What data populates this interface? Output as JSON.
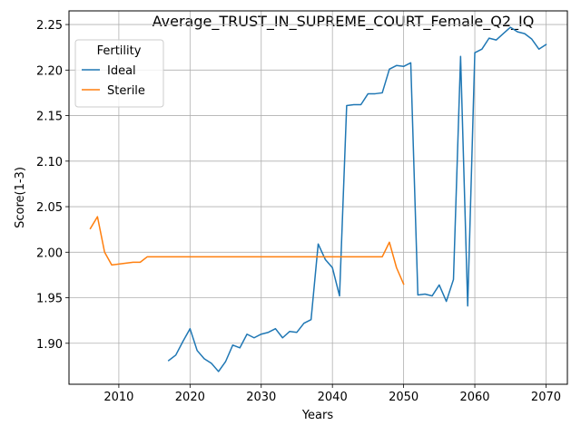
{
  "chart_data": {
    "type": "line",
    "title": "Average_TRUST_IN_SUPREME_COURT_Female_Q2_IQ",
    "xlabel": "Years",
    "ylabel": "Score(1-3)",
    "xlim": [
      2003,
      2073
    ],
    "ylim": [
      1.855,
      2.265
    ],
    "xticks": [
      2010,
      2020,
      2030,
      2040,
      2050,
      2060,
      2070
    ],
    "yticks": [
      1.9,
      1.95,
      2.0,
      2.05,
      2.1,
      2.15,
      2.2,
      2.25
    ],
    "ytick_labels": [
      "1.90",
      "1.95",
      "2.00",
      "2.05",
      "2.10",
      "2.15",
      "2.20",
      "2.25"
    ],
    "grid": true,
    "legend": {
      "title": "Fertility",
      "placement": "top-left"
    },
    "series": [
      {
        "name": "Ideal",
        "color": "#1f77b4",
        "x": [
          2017,
          2018,
          2019,
          2020,
          2021,
          2022,
          2023,
          2024,
          2025,
          2026,
          2027,
          2028,
          2029,
          2030,
          2031,
          2032,
          2033,
          2034,
          2035,
          2036,
          2037,
          2038,
          2039,
          2040,
          2041,
          2042,
          2043,
          2044,
          2045,
          2046,
          2047,
          2048,
          2049,
          2050,
          2051,
          2052,
          2053,
          2054,
          2055,
          2056,
          2057,
          2058,
          2059,
          2060,
          2061,
          2062,
          2063,
          2064,
          2065,
          2066,
          2067,
          2068,
          2069,
          2070
        ],
        "y": [
          1.881,
          1.887,
          1.902,
          1.916,
          1.892,
          1.883,
          1.878,
          1.869,
          1.88,
          1.898,
          1.895,
          1.91,
          1.906,
          1.91,
          1.912,
          1.916,
          1.906,
          1.913,
          1.912,
          1.922,
          1.926,
          2.009,
          1.992,
          1.983,
          1.952,
          2.161,
          2.162,
          2.162,
          2.174,
          2.174,
          2.175,
          2.201,
          2.205,
          2.204,
          2.208,
          1.953,
          1.954,
          1.952,
          1.964,
          1.946,
          1.97,
          2.215,
          1.941,
          2.219,
          2.223,
          2.235,
          2.233,
          2.24,
          2.247,
          2.242,
          2.24,
          2.234,
          2.223,
          2.228
        ]
      },
      {
        "name": "Sterile",
        "color": "#ff7f0e",
        "x": [
          2006,
          2007,
          2008,
          2009,
          2010,
          2011,
          2012,
          2013,
          2014,
          2015,
          2016,
          2017,
          2018,
          2019,
          2020,
          2021,
          2022,
          2023,
          2024,
          2025,
          2026,
          2027,
          2028,
          2029,
          2030,
          2031,
          2032,
          2033,
          2034,
          2035,
          2036,
          2037,
          2038,
          2039,
          2040,
          2041,
          2042,
          2043,
          2044,
          2045,
          2046,
          2047,
          2048,
          2049,
          2050
        ],
        "y": [
          2.026,
          2.039,
          2.0,
          1.986,
          1.987,
          1.988,
          1.989,
          1.989,
          1.995,
          1.995,
          1.995,
          1.995,
          1.995,
          1.995,
          1.995,
          1.995,
          1.995,
          1.995,
          1.995,
          1.995,
          1.995,
          1.995,
          1.995,
          1.995,
          1.995,
          1.995,
          1.995,
          1.995,
          1.995,
          1.995,
          1.995,
          1.995,
          1.995,
          1.995,
          1.995,
          1.995,
          1.995,
          1.995,
          1.995,
          1.995,
          1.995,
          1.995,
          2.011,
          1.983,
          1.965
        ]
      }
    ]
  }
}
